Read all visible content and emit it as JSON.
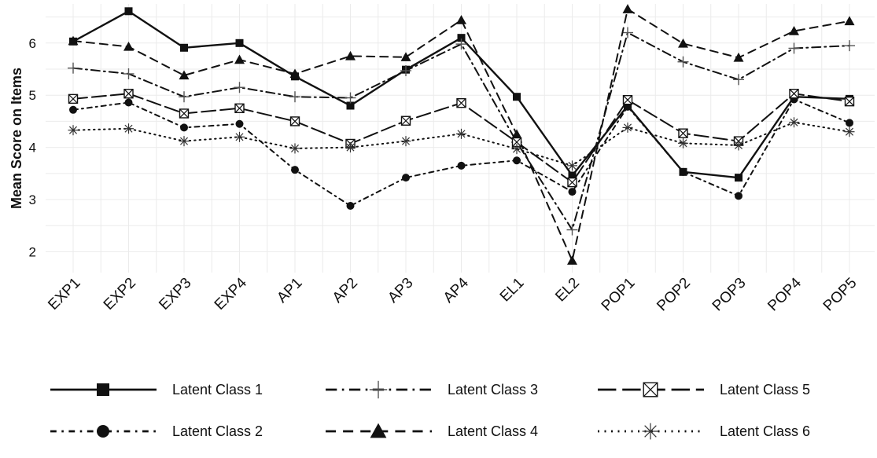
{
  "chart_data": {
    "type": "line",
    "title": "",
    "xlabel": "",
    "ylabel": "Mean Score on Items",
    "ylim": [
      1.6,
      6.75
    ],
    "yticks": [
      2,
      3,
      4,
      5,
      6
    ],
    "grid": true,
    "legend_position": "bottom",
    "categories": [
      "EXP1",
      "EXP2",
      "EXP3",
      "EXP4",
      "AP1",
      "AP2",
      "AP3",
      "AP4",
      "EL1",
      "EL2",
      "POP1",
      "POP2",
      "POP3",
      "POP4",
      "POP5"
    ],
    "series": [
      {
        "name": "Latent Class 1",
        "line": "solid",
        "marker": "square",
        "values": [
          6.03,
          6.61,
          5.91,
          6.0,
          5.36,
          4.8,
          5.49,
          6.1,
          4.97,
          3.46,
          4.8,
          3.53,
          3.42,
          4.97,
          4.93
        ]
      },
      {
        "name": "Latent Class 2",
        "line": "dashdot",
        "marker": "circle",
        "values": [
          4.72,
          4.86,
          4.38,
          4.45,
          3.57,
          2.88,
          3.42,
          3.65,
          3.75,
          3.15,
          4.78,
          3.53,
          3.07,
          4.92,
          4.47
        ]
      },
      {
        "name": "Latent Class 3",
        "line": "longdashdot",
        "marker": "plus",
        "values": [
          5.52,
          5.41,
          4.97,
          5.15,
          4.97,
          4.95,
          5.47,
          5.98,
          4.1,
          2.42,
          6.2,
          5.64,
          5.3,
          5.9,
          5.95
        ]
      },
      {
        "name": "Latent Class 4",
        "line": "dashed",
        "marker": "triangle",
        "values": [
          6.04,
          5.93,
          5.38,
          5.68,
          5.41,
          5.75,
          5.73,
          6.44,
          4.25,
          1.83,
          6.65,
          5.99,
          5.72,
          6.23,
          6.42
        ]
      },
      {
        "name": "Latent Class 5",
        "line": "longdash",
        "marker": "boxx",
        "values": [
          4.93,
          5.03,
          4.65,
          4.75,
          4.5,
          4.07,
          4.51,
          4.85,
          4.1,
          3.33,
          4.91,
          4.27,
          4.12,
          5.03,
          4.88
        ]
      },
      {
        "name": "Latent Class 6",
        "line": "dotted",
        "marker": "star",
        "values": [
          4.33,
          4.36,
          4.12,
          4.2,
          3.98,
          4.0,
          4.12,
          4.26,
          3.97,
          3.65,
          4.38,
          4.08,
          4.04,
          4.48,
          4.3
        ]
      }
    ]
  }
}
